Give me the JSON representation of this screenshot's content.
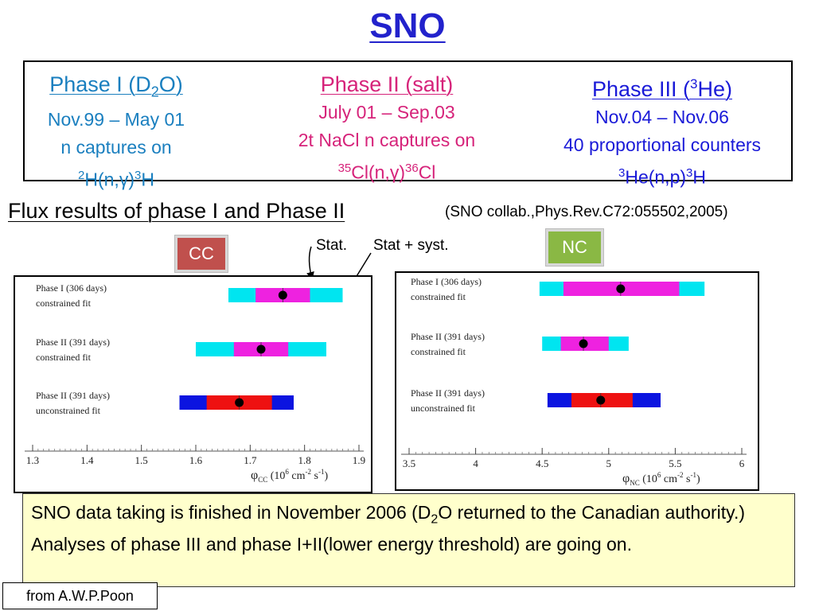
{
  "slide": {
    "title": "SNO",
    "phases": [
      {
        "title_pre": "Phase I (D",
        "title_sub": "2",
        "title_post": "O)",
        "line1": "Nov.99 – May 01",
        "line2": "n captures on",
        "line3_sup1": "2",
        "line3_mid": "H(n,γ)",
        "line3_sup2": "3",
        "line3_end": "H"
      },
      {
        "title": "Phase II (salt)",
        "line1": "July 01 – Sep.03",
        "line2": "2t NaCl n captures on",
        "line3_sup1": "35",
        "line3_mid": "Cl(n,γ)",
        "line3_sup2": "36",
        "line3_end": "Cl"
      },
      {
        "title_pre": "Phase III (",
        "title_sup": "3",
        "title_post": "He)",
        "line1": "Nov.04 – Nov.06",
        "line2": "40 proportional counters",
        "line3_sup1": "3",
        "line3_mid": "He(n,p)",
        "line3_sup2": "3",
        "line3_end": "H"
      }
    ],
    "flux_heading": "Flux results of phase I and Phase II",
    "reference": "(SNO collab.,Phys.Rev.C72:055502,2005)",
    "cc_label": "CC",
    "nc_label": "NC",
    "stat_label": "Stat.",
    "statsyst_label": "Stat + syst.",
    "notes": {
      "line1_pre": "SNO data taking is finished in November 2006 (D",
      "line1_sub": "2",
      "line1_post": "O returned to the Canadian authority.)",
      "line2": "Analyses of phase III and phase I+II(lower energy threshold) are going on."
    },
    "credit": "from A.W.P.Poon",
    "colors": {
      "title": "#2222cc",
      "phase1": "#1a7fbf",
      "phase2": "#d6237a",
      "phase3": "#1a1ad8",
      "syst_constrained": "#00e5f0",
      "stat_constrained": "#ee22e0",
      "syst_unconstrained": "#0b14e0",
      "stat_unconstrained": "#ee1111",
      "cc_box": "#c0504d",
      "nc_box": "#8ab844",
      "notes_bg": "#ffffcc"
    }
  },
  "chart_data": [
    {
      "type": "interval",
      "name": "CC",
      "xlabel_main": "φ",
      "xlabel_sub": "CC",
      "xlabel_rest": " (10",
      "xlabel_sup1": "6",
      "xlabel_rest2": " cm",
      "xlabel_sup2": "-2",
      "xlabel_rest3": " s",
      "xlabel_sup3": "-1",
      "xlabel_end": ")",
      "xlim": [
        1.3,
        1.9
      ],
      "ticks": [
        1.3,
        1.4,
        1.5,
        1.6,
        1.7,
        1.8,
        1.9
      ],
      "tick_labels": [
        "1.3",
        "1.4",
        "1.5",
        "1.6",
        "1.7",
        "1.8",
        "1.9"
      ],
      "rows": [
        {
          "label1": "Phase I (306 days)",
          "label2": "constrained fit",
          "value": 1.76,
          "stat": [
            1.71,
            1.81
          ],
          "syst": [
            1.66,
            1.87
          ],
          "style": "constrained"
        },
        {
          "label1": "Phase II (391 days)",
          "label2": "constrained fit",
          "value": 1.72,
          "stat": [
            1.67,
            1.77
          ],
          "syst": [
            1.6,
            1.84
          ],
          "style": "constrained"
        },
        {
          "label1": "Phase II (391 days)",
          "label2": "unconstrained fit",
          "value": 1.68,
          "stat": [
            1.62,
            1.74
          ],
          "syst": [
            1.57,
            1.78
          ],
          "style": "unconstrained"
        }
      ]
    },
    {
      "type": "interval",
      "name": "NC",
      "xlabel_main": "φ",
      "xlabel_sub": "NC",
      "xlabel_rest": " (10",
      "xlabel_sup1": "6",
      "xlabel_rest2": " cm",
      "xlabel_sup2": "-2",
      "xlabel_rest3": " s",
      "xlabel_sup3": "-1",
      "xlabel_end": ")",
      "xlim": [
        3.5,
        6.0
      ],
      "ticks": [
        3.5,
        4.0,
        4.5,
        5.0,
        5.5,
        6.0
      ],
      "tick_labels": [
        "3.5",
        "4",
        "4.5",
        "5",
        "5.5",
        "6"
      ],
      "rows": [
        {
          "label1": "Phase I (306 days)",
          "label2": "constrained fit",
          "value": 5.09,
          "stat": [
            4.66,
            5.53
          ],
          "syst": [
            4.48,
            5.72
          ],
          "style": "constrained"
        },
        {
          "label1": "Phase II (391 days)",
          "label2": "constrained fit",
          "value": 4.81,
          "stat": [
            4.64,
            5.0
          ],
          "syst": [
            4.5,
            5.15
          ],
          "style": "constrained"
        },
        {
          "label1": "Phase II (391 days)",
          "label2": "unconstrained fit",
          "value": 4.94,
          "stat": [
            4.72,
            5.18
          ],
          "syst": [
            4.54,
            5.39
          ],
          "style": "unconstrained"
        }
      ]
    }
  ]
}
